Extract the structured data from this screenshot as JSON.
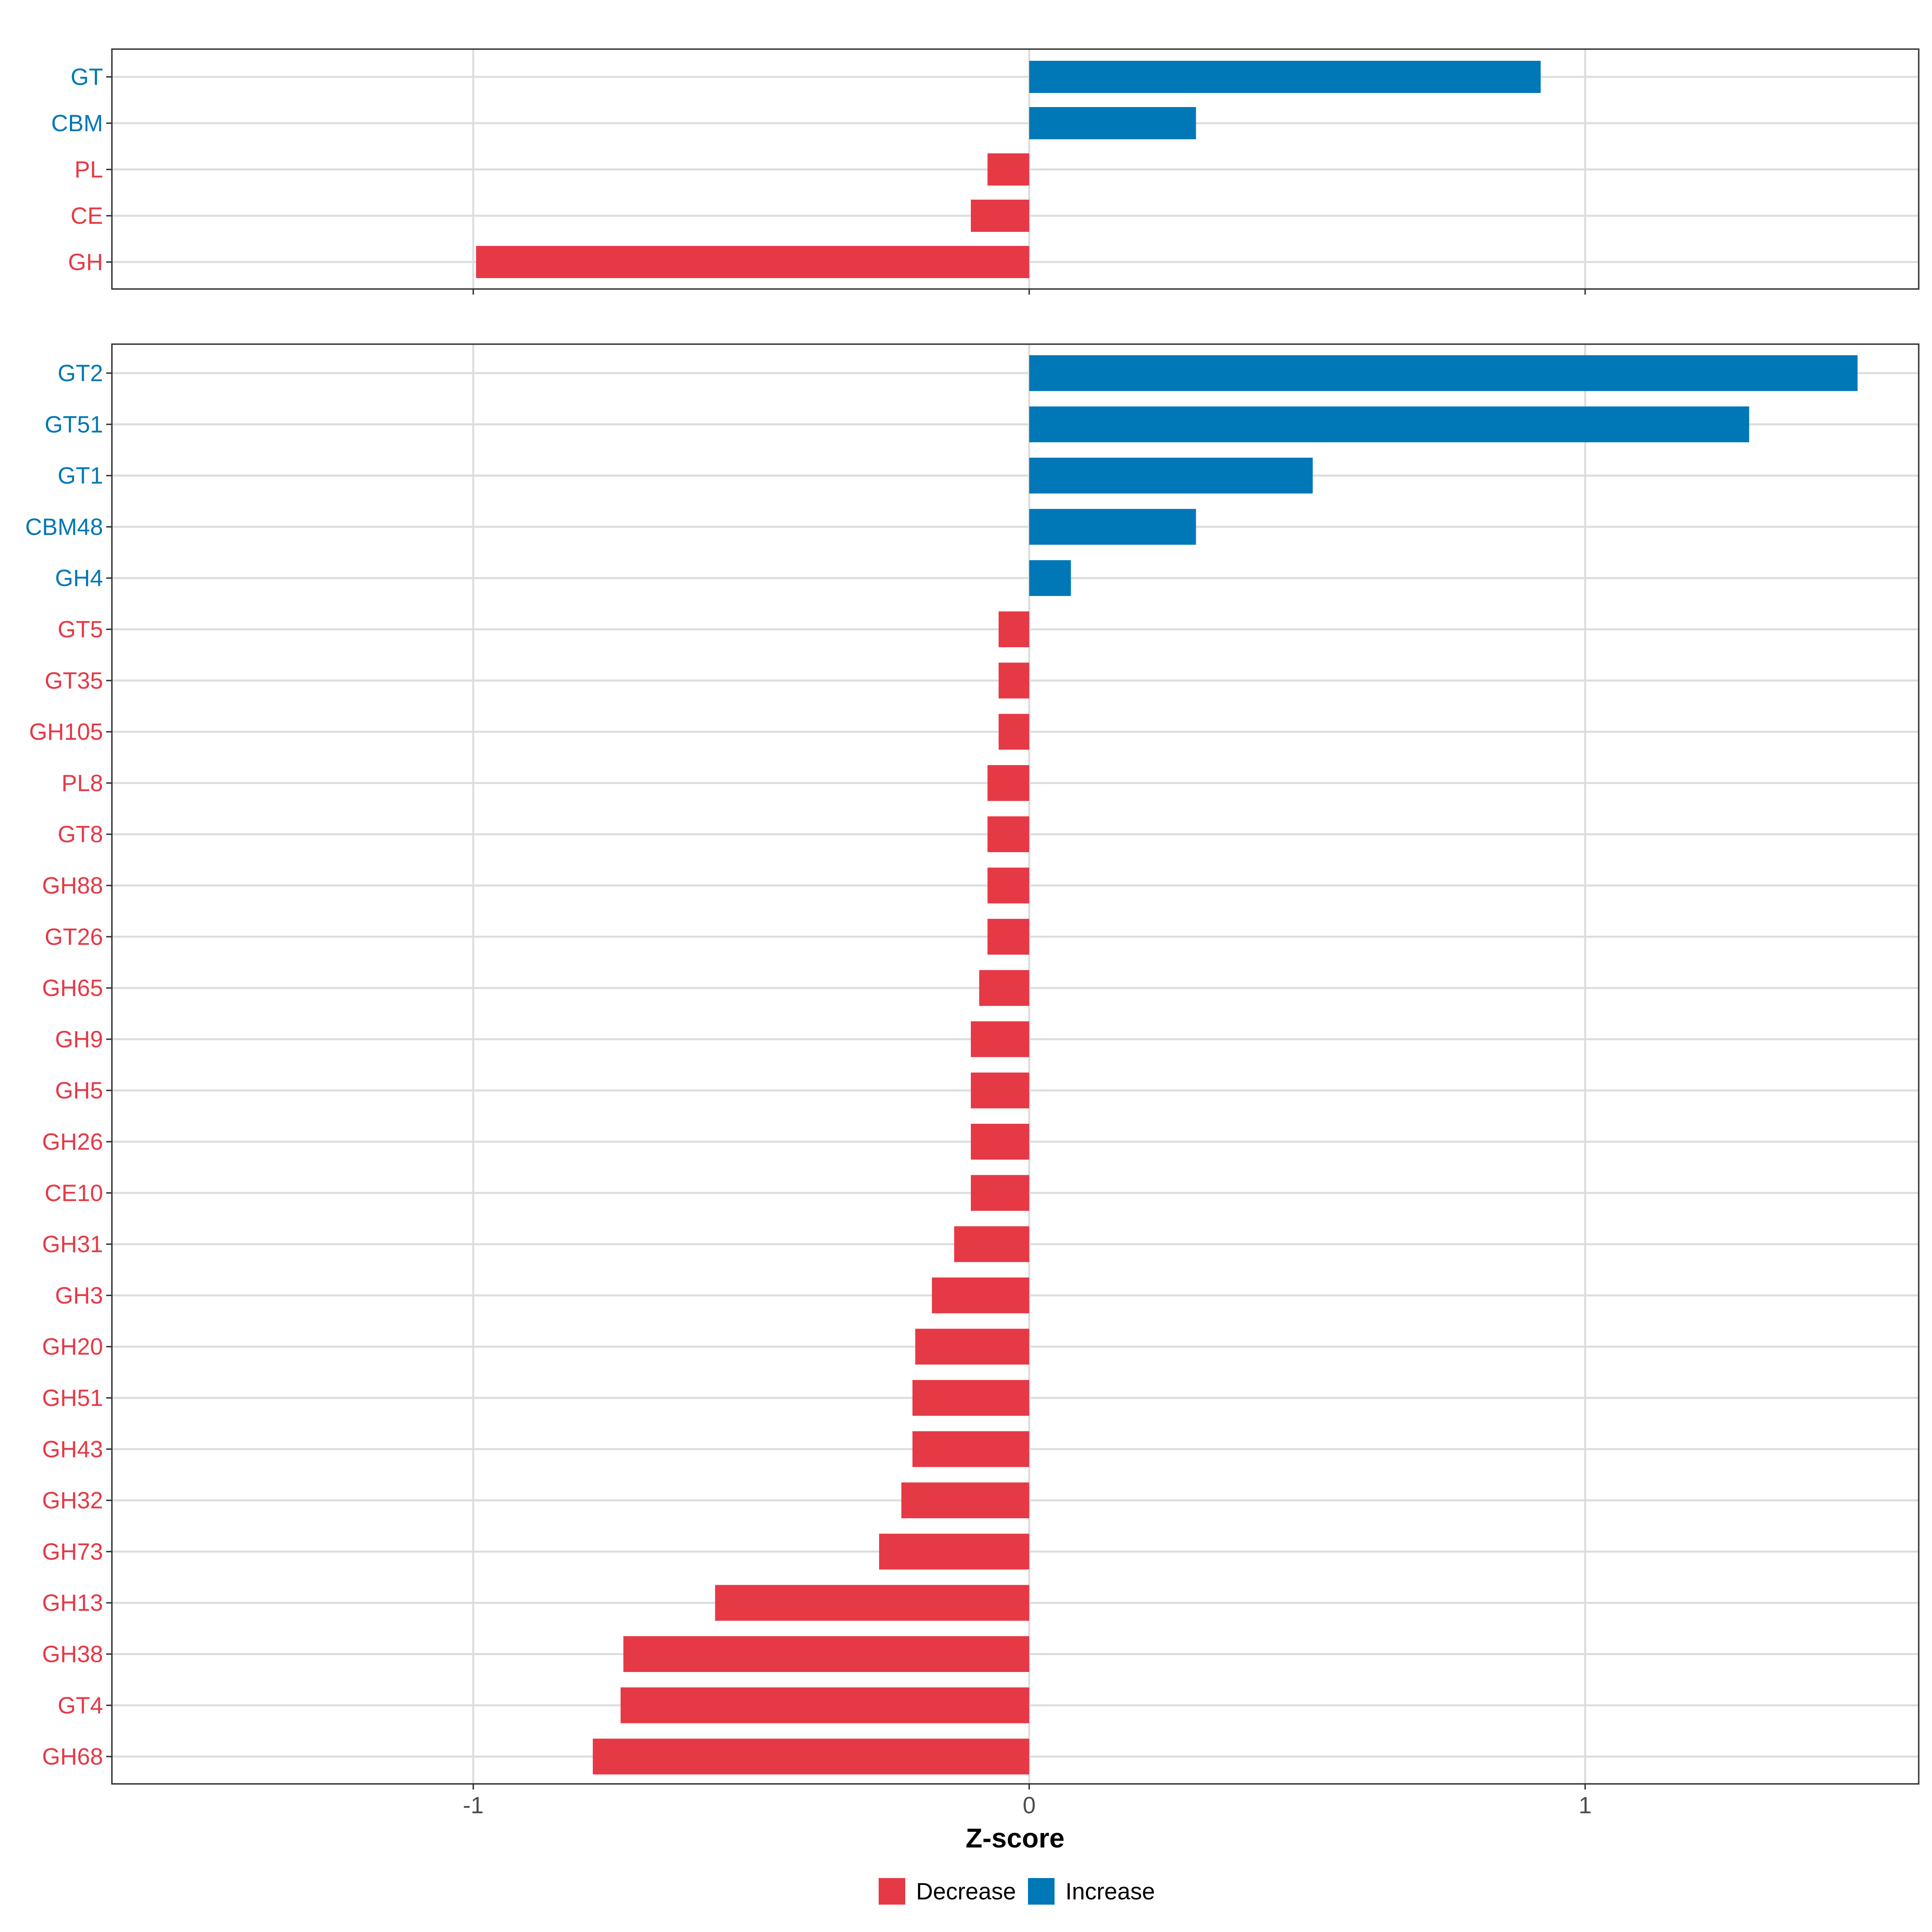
{
  "colors": {
    "decrease": "#e63946",
    "increase": "#0077b6"
  },
  "chart_data": [
    {
      "type": "bar",
      "orientation": "horizontal",
      "panel": "top",
      "categories": [
        "GT",
        "CBM",
        "PL",
        "CE",
        "GH"
      ],
      "values": [
        0.92,
        0.3,
        -0.075,
        -0.105,
        -0.995
      ],
      "xlim": [
        -1.65,
        1.6
      ],
      "xticks": [
        -1,
        0,
        1
      ],
      "grid": true
    },
    {
      "type": "bar",
      "orientation": "horizontal",
      "panel": "bottom",
      "categories": [
        "GT2",
        "GT51",
        "GT1",
        "CBM48",
        "GH4",
        "GT5",
        "GT35",
        "GH105",
        "PL8",
        "GT8",
        "GH88",
        "GT26",
        "GH65",
        "GH9",
        "GH5",
        "GH26",
        "CE10",
        "GH31",
        "GH3",
        "GH20",
        "GH51",
        "GH43",
        "GH32",
        "GH73",
        "GH13",
        "GH38",
        "GT4",
        "GH68"
      ],
      "values": [
        1.49,
        1.295,
        0.51,
        0.3,
        0.075,
        -0.055,
        -0.055,
        -0.055,
        -0.075,
        -0.075,
        -0.075,
        -0.075,
        -0.09,
        -0.105,
        -0.105,
        -0.105,
        -0.105,
        -0.135,
        -0.175,
        -0.205,
        -0.21,
        -0.21,
        -0.23,
        -0.27,
        -0.565,
        -0.73,
        -0.735,
        -0.785
      ],
      "xlim": [
        -1.65,
        1.6
      ],
      "xticks": [
        -1,
        0,
        1
      ],
      "xtick_labels": [
        "-1",
        "0",
        "1"
      ],
      "xlabel": "Z-score",
      "grid": true
    }
  ],
  "legend": {
    "position": "bottom",
    "items": [
      {
        "label": "Decrease",
        "color_key": "decrease"
      },
      {
        "label": "Increase",
        "color_key": "increase"
      }
    ]
  }
}
